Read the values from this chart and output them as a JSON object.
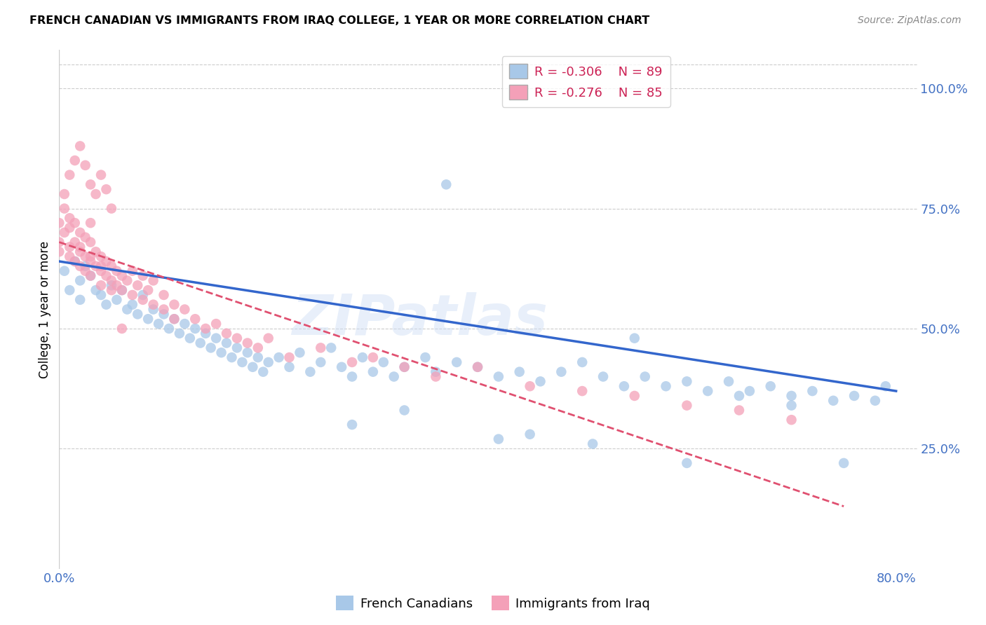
{
  "title": "FRENCH CANADIAN VS IMMIGRANTS FROM IRAQ COLLEGE, 1 YEAR OR MORE CORRELATION CHART",
  "source": "Source: ZipAtlas.com",
  "ylabel": "College, 1 year or more",
  "ytick_vals": [
    0.25,
    0.5,
    0.75,
    1.0
  ],
  "ytick_labels": [
    "25.0%",
    "50.0%",
    "75.0%",
    "100.0%"
  ],
  "xtick_vals": [
    0.0,
    0.8
  ],
  "xtick_labels": [
    "0.0%",
    "80.0%"
  ],
  "xlim": [
    0.0,
    0.82
  ],
  "ylim": [
    0.0,
    1.08
  ],
  "blue_r": -0.306,
  "blue_n": 89,
  "pink_r": -0.276,
  "pink_n": 85,
  "blue_color": "#a8c8e8",
  "pink_color": "#f4a0b8",
  "blue_line_color": "#3366cc",
  "pink_line_color": "#e05070",
  "watermark": "ZIPatlas",
  "legend_label_blue": "French Canadians",
  "legend_label_pink": "Immigrants from Iraq",
  "blue_scatter_x": [
    0.005,
    0.01,
    0.015,
    0.02,
    0.025,
    0.02,
    0.03,
    0.035,
    0.04,
    0.045,
    0.05,
    0.055,
    0.06,
    0.065,
    0.07,
    0.075,
    0.08,
    0.085,
    0.09,
    0.095,
    0.1,
    0.105,
    0.11,
    0.115,
    0.12,
    0.125,
    0.13,
    0.135,
    0.14,
    0.145,
    0.15,
    0.155,
    0.16,
    0.165,
    0.17,
    0.175,
    0.18,
    0.185,
    0.19,
    0.195,
    0.2,
    0.21,
    0.22,
    0.23,
    0.24,
    0.25,
    0.26,
    0.27,
    0.28,
    0.29,
    0.3,
    0.31,
    0.32,
    0.33,
    0.35,
    0.36,
    0.38,
    0.4,
    0.42,
    0.44,
    0.46,
    0.48,
    0.5,
    0.52,
    0.54,
    0.56,
    0.58,
    0.6,
    0.62,
    0.64,
    0.66,
    0.68,
    0.7,
    0.72,
    0.74,
    0.76,
    0.78,
    0.37,
    0.28,
    0.42,
    0.51,
    0.33,
    0.45,
    0.55,
    0.6,
    0.65,
    0.7,
    0.75,
    0.79
  ],
  "blue_scatter_y": [
    0.62,
    0.58,
    0.64,
    0.6,
    0.63,
    0.56,
    0.61,
    0.58,
    0.57,
    0.55,
    0.59,
    0.56,
    0.58,
    0.54,
    0.55,
    0.53,
    0.57,
    0.52,
    0.54,
    0.51,
    0.53,
    0.5,
    0.52,
    0.49,
    0.51,
    0.48,
    0.5,
    0.47,
    0.49,
    0.46,
    0.48,
    0.45,
    0.47,
    0.44,
    0.46,
    0.43,
    0.45,
    0.42,
    0.44,
    0.41,
    0.43,
    0.44,
    0.42,
    0.45,
    0.41,
    0.43,
    0.46,
    0.42,
    0.4,
    0.44,
    0.41,
    0.43,
    0.4,
    0.42,
    0.44,
    0.41,
    0.43,
    0.42,
    0.4,
    0.41,
    0.39,
    0.41,
    0.43,
    0.4,
    0.38,
    0.4,
    0.38,
    0.39,
    0.37,
    0.39,
    0.37,
    0.38,
    0.36,
    0.37,
    0.35,
    0.36,
    0.35,
    0.8,
    0.3,
    0.27,
    0.26,
    0.33,
    0.28,
    0.48,
    0.22,
    0.36,
    0.34,
    0.22,
    0.38
  ],
  "pink_scatter_x": [
    0.0,
    0.0,
    0.0,
    0.005,
    0.005,
    0.01,
    0.01,
    0.01,
    0.01,
    0.015,
    0.015,
    0.015,
    0.02,
    0.02,
    0.02,
    0.02,
    0.025,
    0.025,
    0.025,
    0.03,
    0.03,
    0.03,
    0.03,
    0.03,
    0.035,
    0.035,
    0.04,
    0.04,
    0.04,
    0.04,
    0.045,
    0.045,
    0.05,
    0.05,
    0.05,
    0.055,
    0.055,
    0.06,
    0.06,
    0.065,
    0.07,
    0.07,
    0.075,
    0.08,
    0.08,
    0.085,
    0.09,
    0.09,
    0.1,
    0.1,
    0.11,
    0.11,
    0.12,
    0.13,
    0.14,
    0.15,
    0.16,
    0.17,
    0.18,
    0.19,
    0.2,
    0.22,
    0.25,
    0.28,
    0.3,
    0.33,
    0.36,
    0.4,
    0.45,
    0.5,
    0.55,
    0.6,
    0.65,
    0.7,
    0.005,
    0.01,
    0.015,
    0.02,
    0.025,
    0.03,
    0.035,
    0.04,
    0.045,
    0.05,
    0.06
  ],
  "pink_scatter_y": [
    0.66,
    0.72,
    0.68,
    0.7,
    0.75,
    0.71,
    0.67,
    0.73,
    0.65,
    0.68,
    0.72,
    0.64,
    0.66,
    0.7,
    0.63,
    0.67,
    0.65,
    0.69,
    0.62,
    0.64,
    0.68,
    0.61,
    0.65,
    0.72,
    0.63,
    0.66,
    0.62,
    0.65,
    0.59,
    0.63,
    0.61,
    0.64,
    0.6,
    0.63,
    0.58,
    0.62,
    0.59,
    0.61,
    0.58,
    0.6,
    0.62,
    0.57,
    0.59,
    0.61,
    0.56,
    0.58,
    0.6,
    0.55,
    0.57,
    0.54,
    0.55,
    0.52,
    0.54,
    0.52,
    0.5,
    0.51,
    0.49,
    0.48,
    0.47,
    0.46,
    0.48,
    0.44,
    0.46,
    0.43,
    0.44,
    0.42,
    0.4,
    0.42,
    0.38,
    0.37,
    0.36,
    0.34,
    0.33,
    0.31,
    0.78,
    0.82,
    0.85,
    0.88,
    0.84,
    0.8,
    0.78,
    0.82,
    0.79,
    0.75,
    0.5
  ]
}
